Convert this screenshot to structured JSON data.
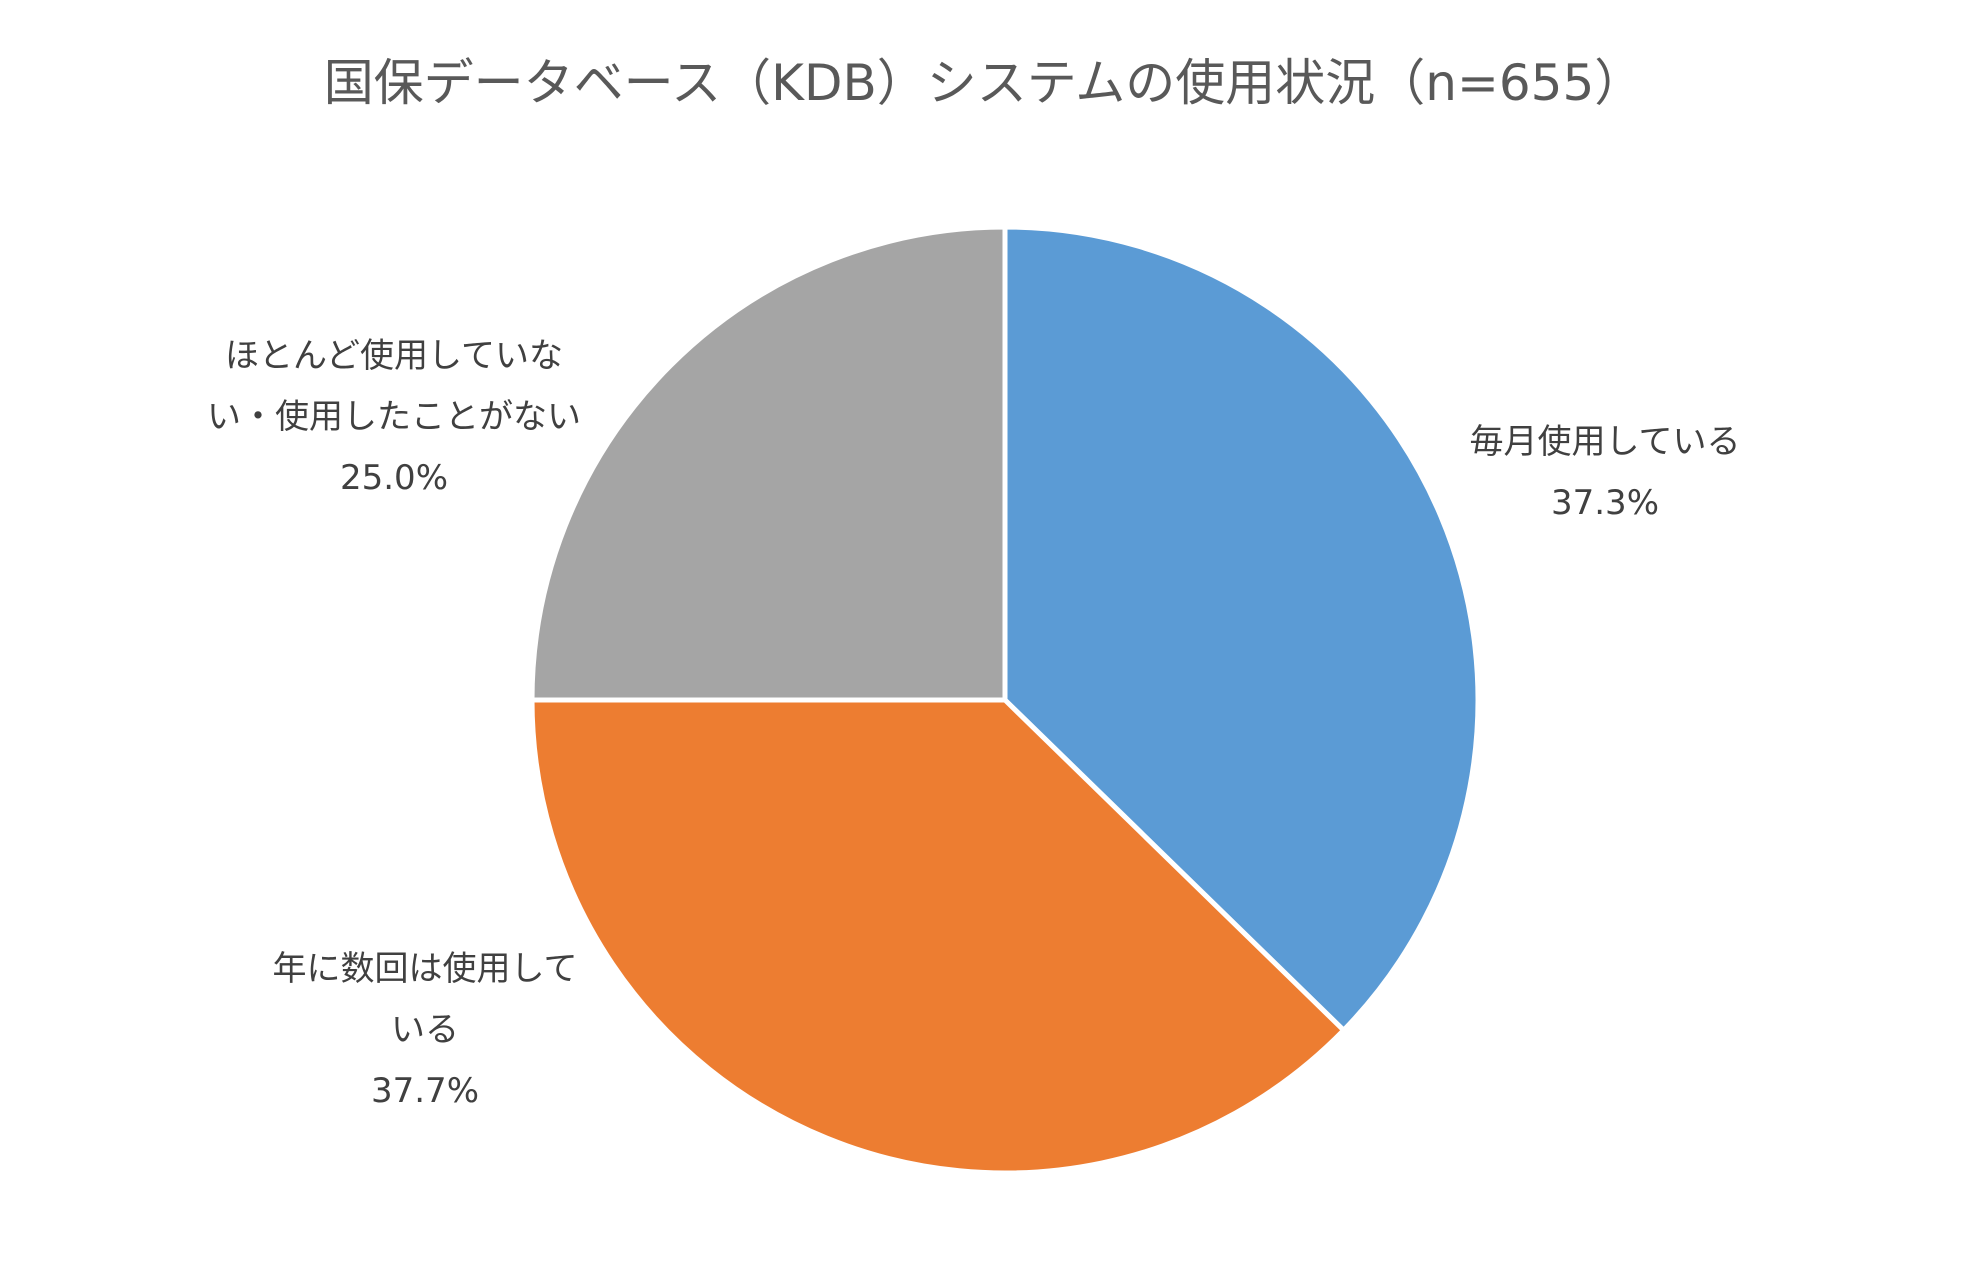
{
  "chart_data": {
    "type": "pie",
    "title": "国保データベース（KDB）システムの使用状況（n=655）",
    "start_angle_deg": 0,
    "direction": "clockwise",
    "slices": [
      {
        "label_lines": [
          "毎月使用している"
        ],
        "value": 37.3,
        "value_label": "37.3%",
        "color": "#5B9BD5"
      },
      {
        "label_lines": [
          "年に数回は使用して",
          "いる"
        ],
        "value": 37.7,
        "value_label": "37.7%",
        "color": "#ED7D31"
      },
      {
        "label_lines": [
          "ほとんど使用していな",
          "い・使用したことがない"
        ],
        "value": 25.0,
        "value_label": "25.0%",
        "color": "#A5A5A5"
      }
    ]
  }
}
